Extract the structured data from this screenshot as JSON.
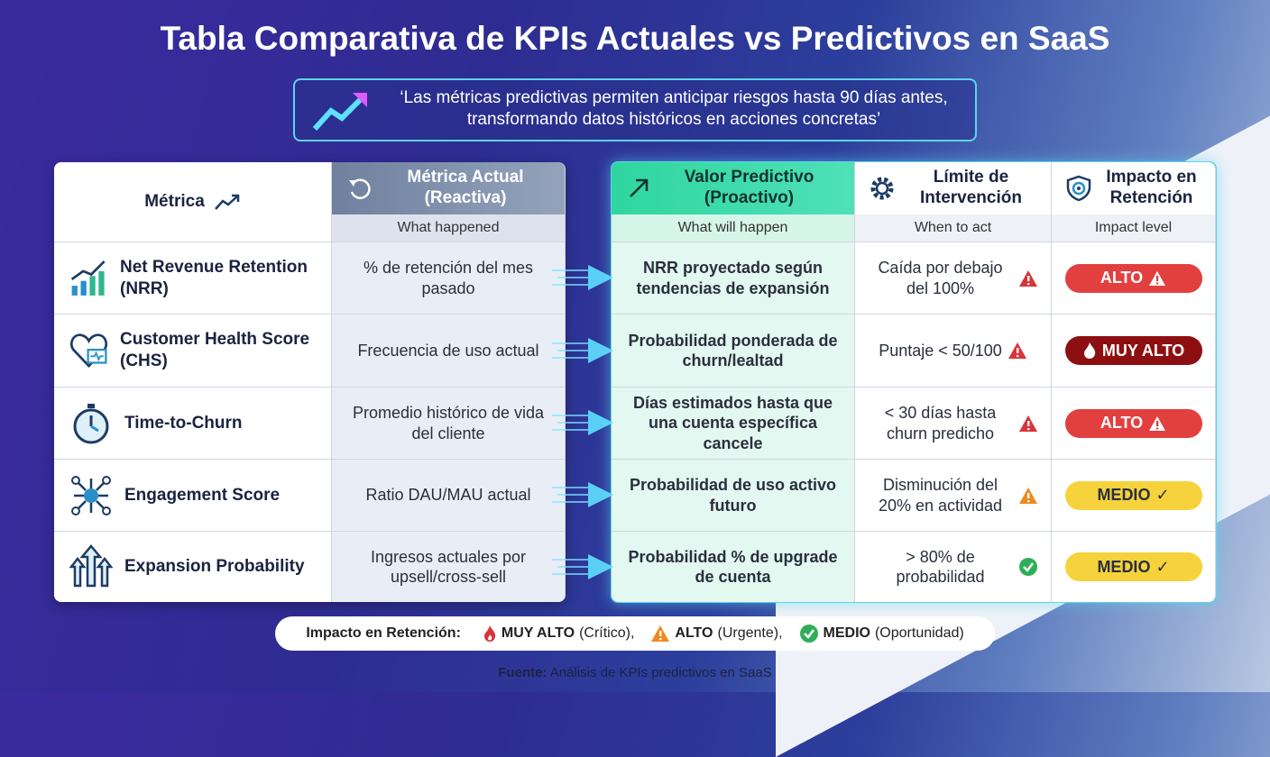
{
  "title": "Tabla Comparativa de KPIs Actuales vs Predictivos en SaaS",
  "quote": "‘Las métricas predictivas permiten anticipar riesgos hasta 90 días antes, transformando datos históricos en acciones concretas’",
  "table": {
    "headers": [
      {
        "title": "Métrica"
      },
      {
        "title": "Métrica Actual (Reactiva)",
        "subtitle": "What happened"
      },
      {
        "title": "Valor Predictivo (Proactivo)",
        "subtitle": "What will happen"
      },
      {
        "title": "Límite de Intervención",
        "subtitle": "When to act"
      },
      {
        "title": "Impacto en Retención",
        "subtitle": "Impact level"
      }
    ],
    "rows": [
      [
        "Net Revenue Retention (NRR)",
        "% de retención del mes pasado",
        "NRR proyectado según tendencias de expansión",
        "Caída por debajo del 100%",
        "ALTO"
      ],
      [
        "Customer Health Score (CHS)",
        "Frecuencia de uso actual",
        "Probabilidad ponderada de churn/lealtad",
        "Puntaje < 50/100",
        "MUY ALTO"
      ],
      [
        "Time-to-Churn",
        "Promedio histórico de vida del cliente",
        "Días estimados hasta que una cuenta específica cancele",
        "< 30 días hasta churn predicho",
        "ALTO"
      ],
      [
        "Engagement Score",
        "Ratio DAU/MAU actual",
        "Probabilidad de uso activo futuro",
        "Disminución del 20% en actividad",
        "MEDIO"
      ],
      [
        "Expansion Probability",
        "Ingresos actuales por upsell/cross-sell",
        "Probabilidad % de upgrade de cuenta",
        "> 80% de probabilidad",
        "MEDIO"
      ]
    ]
  },
  "legend": {
    "label": "Impacto en Retención:",
    "items": [
      {
        "level": "MUY ALTO",
        "note": "(Crítico),"
      },
      {
        "level": "ALTO",
        "note": "(Urgente),"
      },
      {
        "level": "MEDIO",
        "note": "(Oportunidad)"
      }
    ]
  },
  "source": {
    "label": "Fuente:",
    "text": "Análisis de KPIs predictivos en SaaS"
  }
}
